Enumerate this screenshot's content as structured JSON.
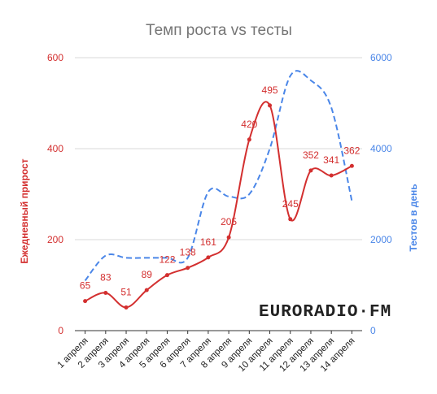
{
  "chart_data": {
    "type": "line",
    "title": "Темп роста vs тесты",
    "categories": [
      "1 апреля",
      "2 апреля",
      "3 апреля",
      "4 апреля",
      "5 апреля",
      "6 апреля",
      "7 апреля",
      "8 апреля",
      "9 апреля",
      "10 апреля",
      "11 апреля",
      "12 апреля",
      "13 апреля",
      "14 апреля"
    ],
    "series": [
      {
        "name": "Ежедневный прирост",
        "axis": "left",
        "color": "#d32f2f",
        "style": "solid-smooth-with-markers",
        "values": [
          65,
          83,
          51,
          89,
          122,
          138,
          161,
          205,
          420,
          495,
          245,
          352,
          341,
          362
        ],
        "data_labels": [
          "65",
          "83",
          "51",
          "89",
          "122",
          "138",
          "161",
          "205",
          "420",
          "495",
          "245",
          "352",
          "341",
          "362"
        ]
      },
      {
        "name": "Тестов в день",
        "axis": "right",
        "color": "#4a86e8",
        "style": "dashed-smooth",
        "values": [
          1100,
          1650,
          1600,
          1600,
          1600,
          1600,
          3050,
          2950,
          3000,
          4000,
          5600,
          5500,
          4900,
          2850
        ]
      }
    ],
    "y_left": {
      "label": "Ежедневный прирост",
      "min": 0,
      "max": 600,
      "ticks": [
        "0",
        "200",
        "400",
        "600"
      ]
    },
    "y_right": {
      "label": "Тестов в день",
      "min": 0,
      "max": 6000,
      "ticks": [
        "0",
        "2000",
        "4000",
        "6000"
      ]
    },
    "grid": true,
    "legend": "none"
  },
  "watermark": {
    "text": "EURORADIO·FM"
  }
}
